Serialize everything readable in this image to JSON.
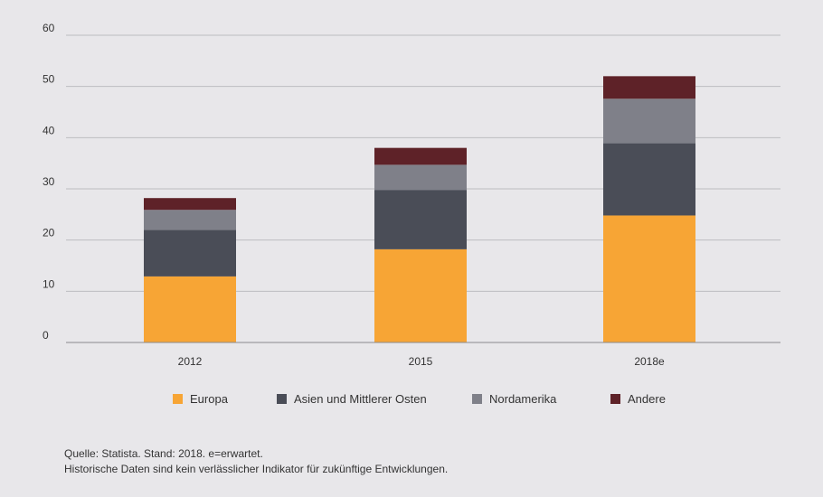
{
  "chart_data": {
    "type": "bar",
    "stacked": true,
    "categories": [
      "2012",
      "2015",
      "2018e"
    ],
    "series": [
      {
        "name": "Europa",
        "color": "#f7a535",
        "values": [
          12.9,
          18.2,
          24.8
        ]
      },
      {
        "name": "Asien und Mittlerer Osten",
        "color": "#4a4d57",
        "values": [
          9.1,
          11.6,
          14.1
        ]
      },
      {
        "name": "Nordamerika",
        "color": "#7f8089",
        "values": [
          3.9,
          4.9,
          8.7
        ]
      },
      {
        "name": "Andere",
        "color": "#5e2228",
        "values": [
          2.3,
          3.3,
          4.4
        ]
      }
    ],
    "ylim": [
      0,
      60
    ],
    "yticks": [
      "0",
      "10",
      "20",
      "30",
      "40",
      "50",
      "60"
    ],
    "grid": true,
    "legend_position": "bottom"
  },
  "footer": {
    "source_line1": "Quelle: Statista. Stand: 2018. e=erwartet.",
    "source_line2": "Historische Daten sind kein verlässlicher Indikator für zukünftige Entwicklungen."
  }
}
